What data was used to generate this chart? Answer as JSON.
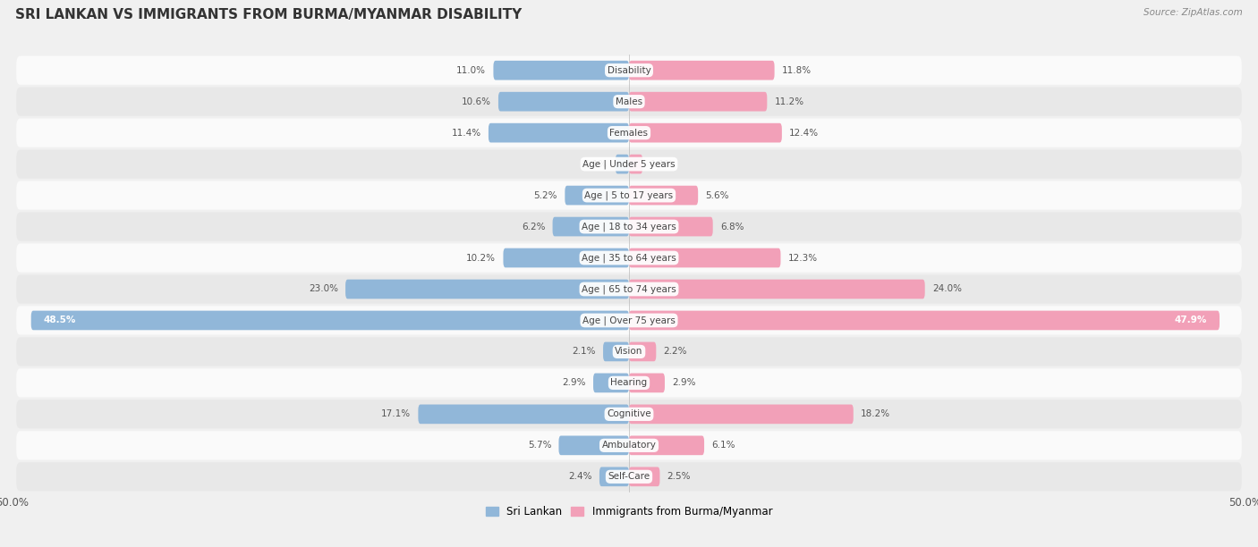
{
  "title": "SRI LANKAN VS IMMIGRANTS FROM BURMA/MYANMAR DISABILITY",
  "source": "Source: ZipAtlas.com",
  "categories": [
    "Disability",
    "Males",
    "Females",
    "Age | Under 5 years",
    "Age | 5 to 17 years",
    "Age | 18 to 34 years",
    "Age | 35 to 64 years",
    "Age | 65 to 74 years",
    "Age | Over 75 years",
    "Vision",
    "Hearing",
    "Cognitive",
    "Ambulatory",
    "Self-Care"
  ],
  "sri_lankan": [
    11.0,
    10.6,
    11.4,
    1.1,
    5.2,
    6.2,
    10.2,
    23.0,
    48.5,
    2.1,
    2.9,
    17.1,
    5.7,
    2.4
  ],
  "burma": [
    11.8,
    11.2,
    12.4,
    1.1,
    5.6,
    6.8,
    12.3,
    24.0,
    47.9,
    2.2,
    2.9,
    18.2,
    6.1,
    2.5
  ],
  "sri_lankan_color": "#91b7d9",
  "burma_color": "#f2a0b8",
  "background_color": "#f0f0f0",
  "row_bg_light": "#fafafa",
  "row_bg_dark": "#e8e8e8",
  "axis_max": 50.0,
  "legend_sri_lankan": "Sri Lankan",
  "legend_burma": "Immigrants from Burma/Myanmar",
  "title_fontsize": 11,
  "label_fontsize": 7.5,
  "value_fontsize": 7.5,
  "bar_height": 0.62
}
